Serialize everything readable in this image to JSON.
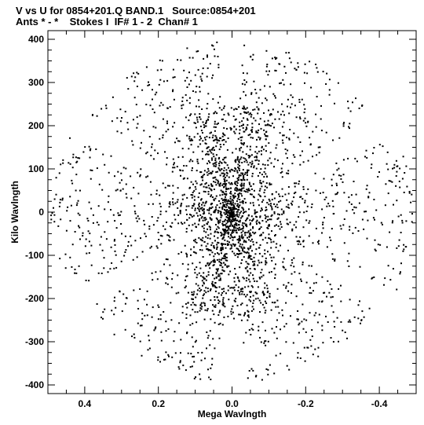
{
  "chart_data": {
    "type": "scatter",
    "title": "V vs U for 0854+201.Q BAND.1   Source:0854+201",
    "subtitle": "Ants * - *    Stokes I  IF# 1 - 2  Chan# 1",
    "xlabel": "Mega Wavlngth",
    "ylabel": "Kilo Wavlngth",
    "x_inverted": true,
    "xlim": [
      0.5,
      -0.5
    ],
    "ylim": [
      -420,
      420
    ],
    "x_ticks": [
      0.4,
      0.2,
      0.0,
      -0.2,
      -0.4
    ],
    "x_tick_labels": [
      "0.4",
      "0.2",
      "0.0",
      "-0.2",
      "-0.4"
    ],
    "y_ticks": [
      400,
      300,
      200,
      100,
      0,
      -100,
      -200,
      -300,
      -400
    ],
    "y_tick_labels": [
      "400",
      "300",
      "200",
      "100",
      "0",
      "-100",
      "-200",
      "-300",
      "-400"
    ],
    "grid": false,
    "legend": "none",
    "marker_color": "#000000",
    "arms": [
      {
        "angle_deg": 0,
        "r_max": 0.495
      },
      {
        "angle_deg": 60,
        "r_max": 0.465
      },
      {
        "angle_deg": 120,
        "r_max": 0.465
      },
      {
        "angle_deg": 90,
        "r_max": 0.29
      }
    ],
    "y_scale_kilo_per_mega": 1000,
    "point_count": 2600
  }
}
